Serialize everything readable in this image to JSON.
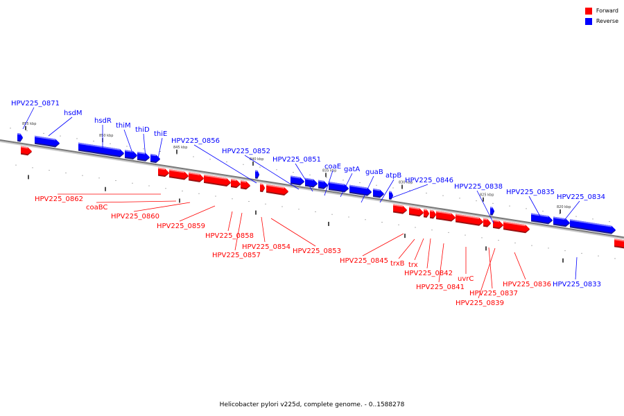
{
  "legend": {
    "forward": {
      "label": "Forward",
      "color": "#ff0000"
    },
    "reverse": {
      "label": "Reverse",
      "color": "#0000ff"
    }
  },
  "caption": "Helicobacter pylori v225d, complete genome. - 0..1588278",
  "ticks": [
    "855 kbp",
    "850 kbp",
    "845 kbp",
    "840 kbp",
    "835 kbp",
    "830 kbp",
    "825 kbp",
    "820 kbp"
  ],
  "reverse_labels": [
    "HPV225_0871",
    "hsdM",
    "hsdR",
    "thiM",
    "thiD",
    "thiE",
    "HPV225_0856",
    "HPV225_0852",
    "HPV225_0851",
    "coaE",
    "gatA",
    "guaB",
    "atpB",
    "HPV225_0846",
    "HPV225_0838",
    "HPV225_0835",
    "HPV225_0834",
    "HPV225_0833"
  ],
  "forward_labels": [
    "HPV225_0862",
    "coaBC",
    "HPV225_0860",
    "HPV225_0859",
    "HPV225_0858",
    "HPV225_0857",
    "HPV225_0854",
    "HPV225_0853",
    "HPV225_0845",
    "trxB",
    "trx",
    "HPV225_0842",
    "HPV225_0841",
    "uvrC",
    "HPV225_0837",
    "HPV225_0839",
    "HPV225_0836"
  ]
}
